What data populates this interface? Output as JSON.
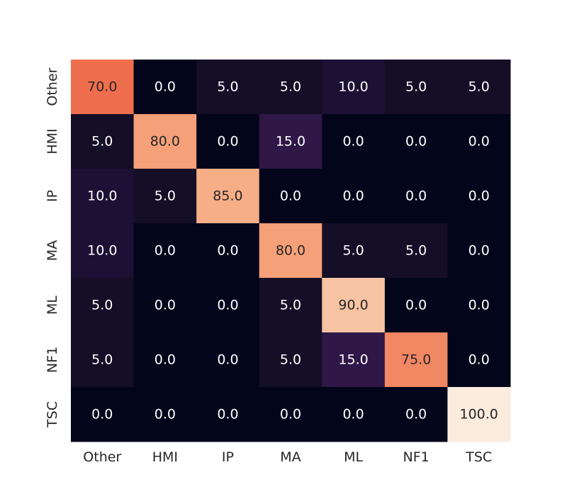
{
  "chart_data": {
    "type": "heatmap",
    "title": "",
    "xlabel": "",
    "ylabel": "",
    "x_categories": [
      "Other",
      "HMI",
      "IP",
      "MA",
      "ML",
      "NF1",
      "TSC"
    ],
    "y_categories": [
      "Other",
      "HMI",
      "IP",
      "MA",
      "ML",
      "NF1",
      "TSC"
    ],
    "values": [
      [
        70.0,
        0.0,
        5.0,
        5.0,
        10.0,
        5.0,
        5.0
      ],
      [
        5.0,
        80.0,
        0.0,
        15.0,
        0.0,
        0.0,
        0.0
      ],
      [
        10.0,
        5.0,
        85.0,
        0.0,
        0.0,
        0.0,
        0.0
      ],
      [
        10.0,
        0.0,
        0.0,
        80.0,
        5.0,
        5.0,
        0.0
      ],
      [
        5.0,
        0.0,
        0.0,
        5.0,
        90.0,
        0.0,
        0.0
      ],
      [
        5.0,
        0.0,
        0.0,
        5.0,
        15.0,
        75.0,
        0.0
      ],
      [
        0.0,
        0.0,
        0.0,
        0.0,
        0.0,
        0.0,
        100.0
      ]
    ],
    "value_range": [
      0,
      100
    ],
    "colormap": "rocket",
    "annotations_format": "0.0",
    "colorbar": false,
    "grid": false
  }
}
